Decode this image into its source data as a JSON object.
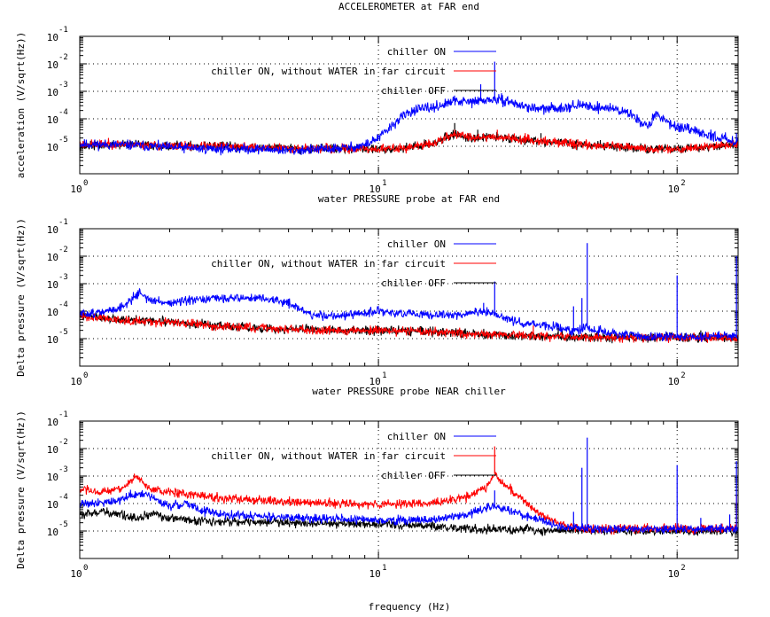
{
  "figure": {
    "xlabel": "frequency (Hz)"
  },
  "chart_data": [
    {
      "type": "line",
      "title": "ACCELEROMETER at FAR end",
      "ylabel": "acceleration (V/sqrt(Hz))",
      "xscale": "log",
      "yscale": "log",
      "xlim": [
        1,
        160
      ],
      "ylim": [
        1e-06,
        0.1
      ],
      "grid": true,
      "legend": "top-right",
      "xticks": [
        {
          "base": "10",
          "exp": "0"
        },
        {
          "base": "10",
          "exp": "1"
        },
        {
          "base": "10",
          "exp": "2"
        }
      ],
      "yticks": [
        {
          "base": "10",
          "exp": "-1"
        },
        {
          "base": "10",
          "exp": "-2"
        },
        {
          "base": "10",
          "exp": "-3"
        },
        {
          "base": "10",
          "exp": "-4"
        },
        {
          "base": "10",
          "exp": "-5"
        }
      ],
      "series": [
        {
          "name": "chiller ON",
          "color": "#0000ff",
          "seed": 11,
          "noise": 0.09,
          "x": [
            1,
            1.5,
            2,
            3,
            4,
            5,
            6,
            7,
            8,
            9,
            10,
            11,
            12,
            13,
            15,
            17,
            18,
            20,
            22,
            24,
            27,
            30,
            35,
            40,
            45,
            50,
            55,
            60,
            70,
            80,
            85,
            90,
            100,
            120,
            140,
            160
          ],
          "y": [
            1.2e-05,
            1.1e-05,
            9e-06,
            8e-06,
            8e-06,
            7e-06,
            7.5e-06,
            8e-06,
            9e-06,
            1.1e-05,
            2e-05,
            5e-05,
            0.00012,
            0.0002,
            0.00025,
            0.00035,
            0.00045,
            0.0004,
            0.00045,
            0.0005,
            0.00045,
            0.0003,
            0.00022,
            0.00025,
            0.0003,
            0.0003,
            0.00025,
            0.00025,
            0.00015,
            5e-05,
            0.00015,
            0.0001,
            5e-05,
            3e-05,
            2e-05,
            1.5e-05
          ],
          "spikes": [
            [
              24.5,
              0.012
            ],
            [
              22,
              0.0018
            ],
            [
              100,
              4e-05
            ],
            [
              158,
              3e-05
            ]
          ]
        },
        {
          "name": "chiller ON, without WATER in far circuit",
          "color": "#ff0000",
          "seed": 23,
          "noise": 0.08,
          "x": [
            1,
            1.5,
            2,
            3,
            5,
            8,
            10,
            12,
            15,
            18,
            20,
            25,
            30,
            40,
            50,
            60,
            80,
            100,
            130,
            160
          ],
          "y": [
            1.2e-05,
            1.2e-05,
            1e-05,
            1e-05,
            8.5e-06,
            8e-06,
            8e-06,
            8.5e-06,
            1.2e-05,
            2.8e-05,
            2.2e-05,
            2.2e-05,
            1.8e-05,
            1.4e-05,
            1.1e-05,
            1e-05,
            8e-06,
            8e-06,
            1e-05,
            1.2e-05
          ],
          "spikes": [
            [
              18,
              4e-05
            ],
            [
              25,
              4e-05
            ],
            [
              31,
              3e-05
            ]
          ]
        },
        {
          "name": "chiller OFF",
          "color": "#000000",
          "seed": 37,
          "noise": 0.08,
          "x": [
            1,
            1.5,
            2,
            3,
            5,
            8,
            10,
            12,
            15,
            18,
            20,
            25,
            30,
            40,
            50,
            60,
            80,
            100,
            130,
            160
          ],
          "y": [
            1e-05,
            1.2e-05,
            1e-05,
            1e-05,
            8.5e-06,
            8e-06,
            8e-06,
            8.5e-06,
            1.2e-05,
            2.8e-05,
            2e-05,
            2.2e-05,
            1.8e-05,
            1.4e-05,
            1.1e-05,
            1e-05,
            8e-06,
            8e-06,
            1e-05,
            1.2e-05
          ],
          "spikes": [
            [
              18,
              7e-05
            ],
            [
              21.5,
              4e-05
            ],
            [
              35,
              3e-05
            ]
          ]
        }
      ]
    },
    {
      "type": "line",
      "title": "water PRESSURE probe at FAR end",
      "ylabel": "Delta pressure (V/sqrt(Hz))",
      "xscale": "log",
      "yscale": "log",
      "xlim": [
        1,
        160
      ],
      "ylim": [
        1e-06,
        0.1
      ],
      "grid": true,
      "legend": "top-right",
      "xticks": [
        {
          "base": "10",
          "exp": "0"
        },
        {
          "base": "10",
          "exp": "1"
        },
        {
          "base": "10",
          "exp": "2"
        }
      ],
      "yticks": [
        {
          "base": "10",
          "exp": "-1"
        },
        {
          "base": "10",
          "exp": "-2"
        },
        {
          "base": "10",
          "exp": "-3"
        },
        {
          "base": "10",
          "exp": "-4"
        },
        {
          "base": "10",
          "exp": "-5"
        }
      ],
      "series": [
        {
          "name": "chiller ON",
          "color": "#0000ff",
          "seed": 51,
          "noise": 0.08,
          "x": [
            1,
            1.2,
            1.4,
            1.55,
            1.6,
            1.7,
            2,
            2.5,
            3,
            4,
            5,
            6,
            8,
            10,
            12,
            15,
            20,
            22,
            24,
            27,
            30,
            35,
            40,
            45,
            50,
            60,
            80,
            100,
            130,
            160
          ],
          "y": [
            8e-05,
            9e-05,
            0.00015,
            0.0004,
            0.0005,
            0.00025,
            0.0002,
            0.00025,
            0.0003,
            0.0003,
            0.0002,
            7e-05,
            7e-05,
            0.0001,
            8e-05,
            7e-05,
            8e-05,
            0.0001,
            8e-05,
            5e-05,
            4e-05,
            3e-05,
            2.5e-05,
            2e-05,
            2.5e-05,
            1.5e-05,
            1.2e-05,
            1.2e-05,
            1.2e-05,
            1.2e-05
          ],
          "spikes": [
            [
              24.5,
              0.0012
            ],
            [
              22.5,
              0.0002
            ],
            [
              50,
              0.03
            ],
            [
              45,
              0.00015
            ],
            [
              48,
              0.0003
            ],
            [
              100,
              0.002
            ],
            [
              158,
              0.01
            ]
          ]
        },
        {
          "name": "chiller ON, without WATER in far circuit",
          "color": "#ff0000",
          "seed": 63,
          "noise": 0.08,
          "x": [
            1,
            1.3,
            1.6,
            2,
            3,
            5,
            8,
            10,
            15,
            20,
            30,
            40,
            60,
            100,
            160
          ],
          "y": [
            7e-05,
            5e-05,
            4.5e-05,
            4e-05,
            2.8e-05,
            2.2e-05,
            2e-05,
            2e-05,
            1.8e-05,
            1.5e-05,
            1.3e-05,
            1.2e-05,
            1.1e-05,
            1.1e-05,
            1.1e-05
          ],
          "spikes": [
            [
              33,
              3e-05
            ]
          ]
        },
        {
          "name": "chiller OFF",
          "color": "#000000",
          "seed": 77,
          "noise": 0.08,
          "x": [
            1,
            1.3,
            1.6,
            2,
            3,
            5,
            8,
            10,
            15,
            20,
            30,
            40,
            60,
            100,
            160
          ],
          "y": [
            7e-05,
            5e-05,
            4.5e-05,
            4e-05,
            2.8e-05,
            2.2e-05,
            2e-05,
            2e-05,
            1.8e-05,
            1.5e-05,
            1.3e-05,
            1.2e-05,
            1.1e-05,
            1.1e-05,
            1.1e-05
          ],
          "spikes": [
            [
              40,
              2.5e-05
            ],
            [
              120,
              2e-05
            ]
          ]
        }
      ]
    },
    {
      "type": "line",
      "title": "water PRESSURE probe NEAR chiller",
      "ylabel": "Delta pressure (V/sqrt(Hz))",
      "xscale": "log",
      "yscale": "log",
      "xlim": [
        1,
        160
      ],
      "ylim": [
        1e-06,
        0.1
      ],
      "grid": true,
      "legend": "top-right",
      "xticks": [
        {
          "base": "10",
          "exp": "0"
        },
        {
          "base": "10",
          "exp": "1"
        },
        {
          "base": "10",
          "exp": "2"
        }
      ],
      "yticks": [
        {
          "base": "10",
          "exp": "-1"
        },
        {
          "base": "10",
          "exp": "-2"
        },
        {
          "base": "10",
          "exp": "-3"
        },
        {
          "base": "10",
          "exp": "-4"
        },
        {
          "base": "10",
          "exp": "-5"
        }
      ],
      "series": [
        {
          "name": "chiller ON",
          "color": "#0000ff",
          "seed": 91,
          "noise": 0.08,
          "x": [
            1,
            1.3,
            1.5,
            1.7,
            2,
            2.3,
            2.5,
            3,
            4,
            5,
            7,
            10,
            15,
            20,
            24,
            27,
            30,
            35,
            40,
            50,
            60,
            80,
            100,
            130,
            160
          ],
          "y": [
            0.0001,
            0.00012,
            0.0002,
            0.0002,
            8e-05,
            0.0001,
            6e-05,
            4e-05,
            3.5e-05,
            3e-05,
            2.8e-05,
            2.5e-05,
            2.5e-05,
            4e-05,
            8e-05,
            6e-05,
            4e-05,
            2.5e-05,
            1.5e-05,
            1.2e-05,
            1.2e-05,
            1.2e-05,
            1.2e-05,
            1.2e-05,
            1.2e-05
          ],
          "spikes": [
            [
              24.5,
              0.0003
            ],
            [
              50,
              0.025
            ],
            [
              48,
              0.002
            ],
            [
              100,
              0.0025
            ],
            [
              158,
              0.0035
            ],
            [
              45,
              5e-05
            ],
            [
              120,
              3e-05
            ],
            [
              150,
              4e-05
            ]
          ]
        },
        {
          "name": "chiller ON, without WATER in far circuit",
          "color": "#ff0000",
          "seed": 103,
          "noise": 0.08,
          "x": [
            1,
            1.2,
            1.4,
            1.55,
            1.6,
            1.7,
            2,
            2.5,
            3,
            5,
            8,
            10,
            15,
            20,
            23,
            24.5,
            26,
            30,
            35,
            40,
            50,
            60,
            80,
            100,
            130,
            160
          ],
          "y": [
            0.0003,
            0.00025,
            0.0004,
            0.0009,
            0.0007,
            0.00035,
            0.00025,
            0.0002,
            0.00015,
            0.00012,
            0.0001,
            9e-05,
            0.0001,
            0.00018,
            0.0004,
            0.0012,
            0.0006,
            0.00015,
            4e-05,
            1.8e-05,
            1.2e-05,
            1.2e-05,
            1.2e-05,
            1.2e-05,
            1.2e-05,
            1.2e-05
          ],
          "spikes": [
            [
              24.5,
              0.012
            ],
            [
              158,
              0.0002
            ]
          ]
        },
        {
          "name": "chiller OFF",
          "color": "#000000",
          "seed": 117,
          "noise": 0.08,
          "x": [
            1,
            1.2,
            1.5,
            1.8,
            2,
            2.5,
            3,
            5,
            8,
            10,
            15,
            20,
            30,
            50,
            100,
            160
          ],
          "y": [
            4e-05,
            5e-05,
            3e-05,
            4e-05,
            3e-05,
            2.5e-05,
            2.2e-05,
            2e-05,
            1.8e-05,
            1.8e-05,
            1.5e-05,
            1.2e-05,
            1.1e-05,
            1e-05,
            1e-05,
            1e-05
          ],
          "spikes": []
        }
      ]
    }
  ]
}
